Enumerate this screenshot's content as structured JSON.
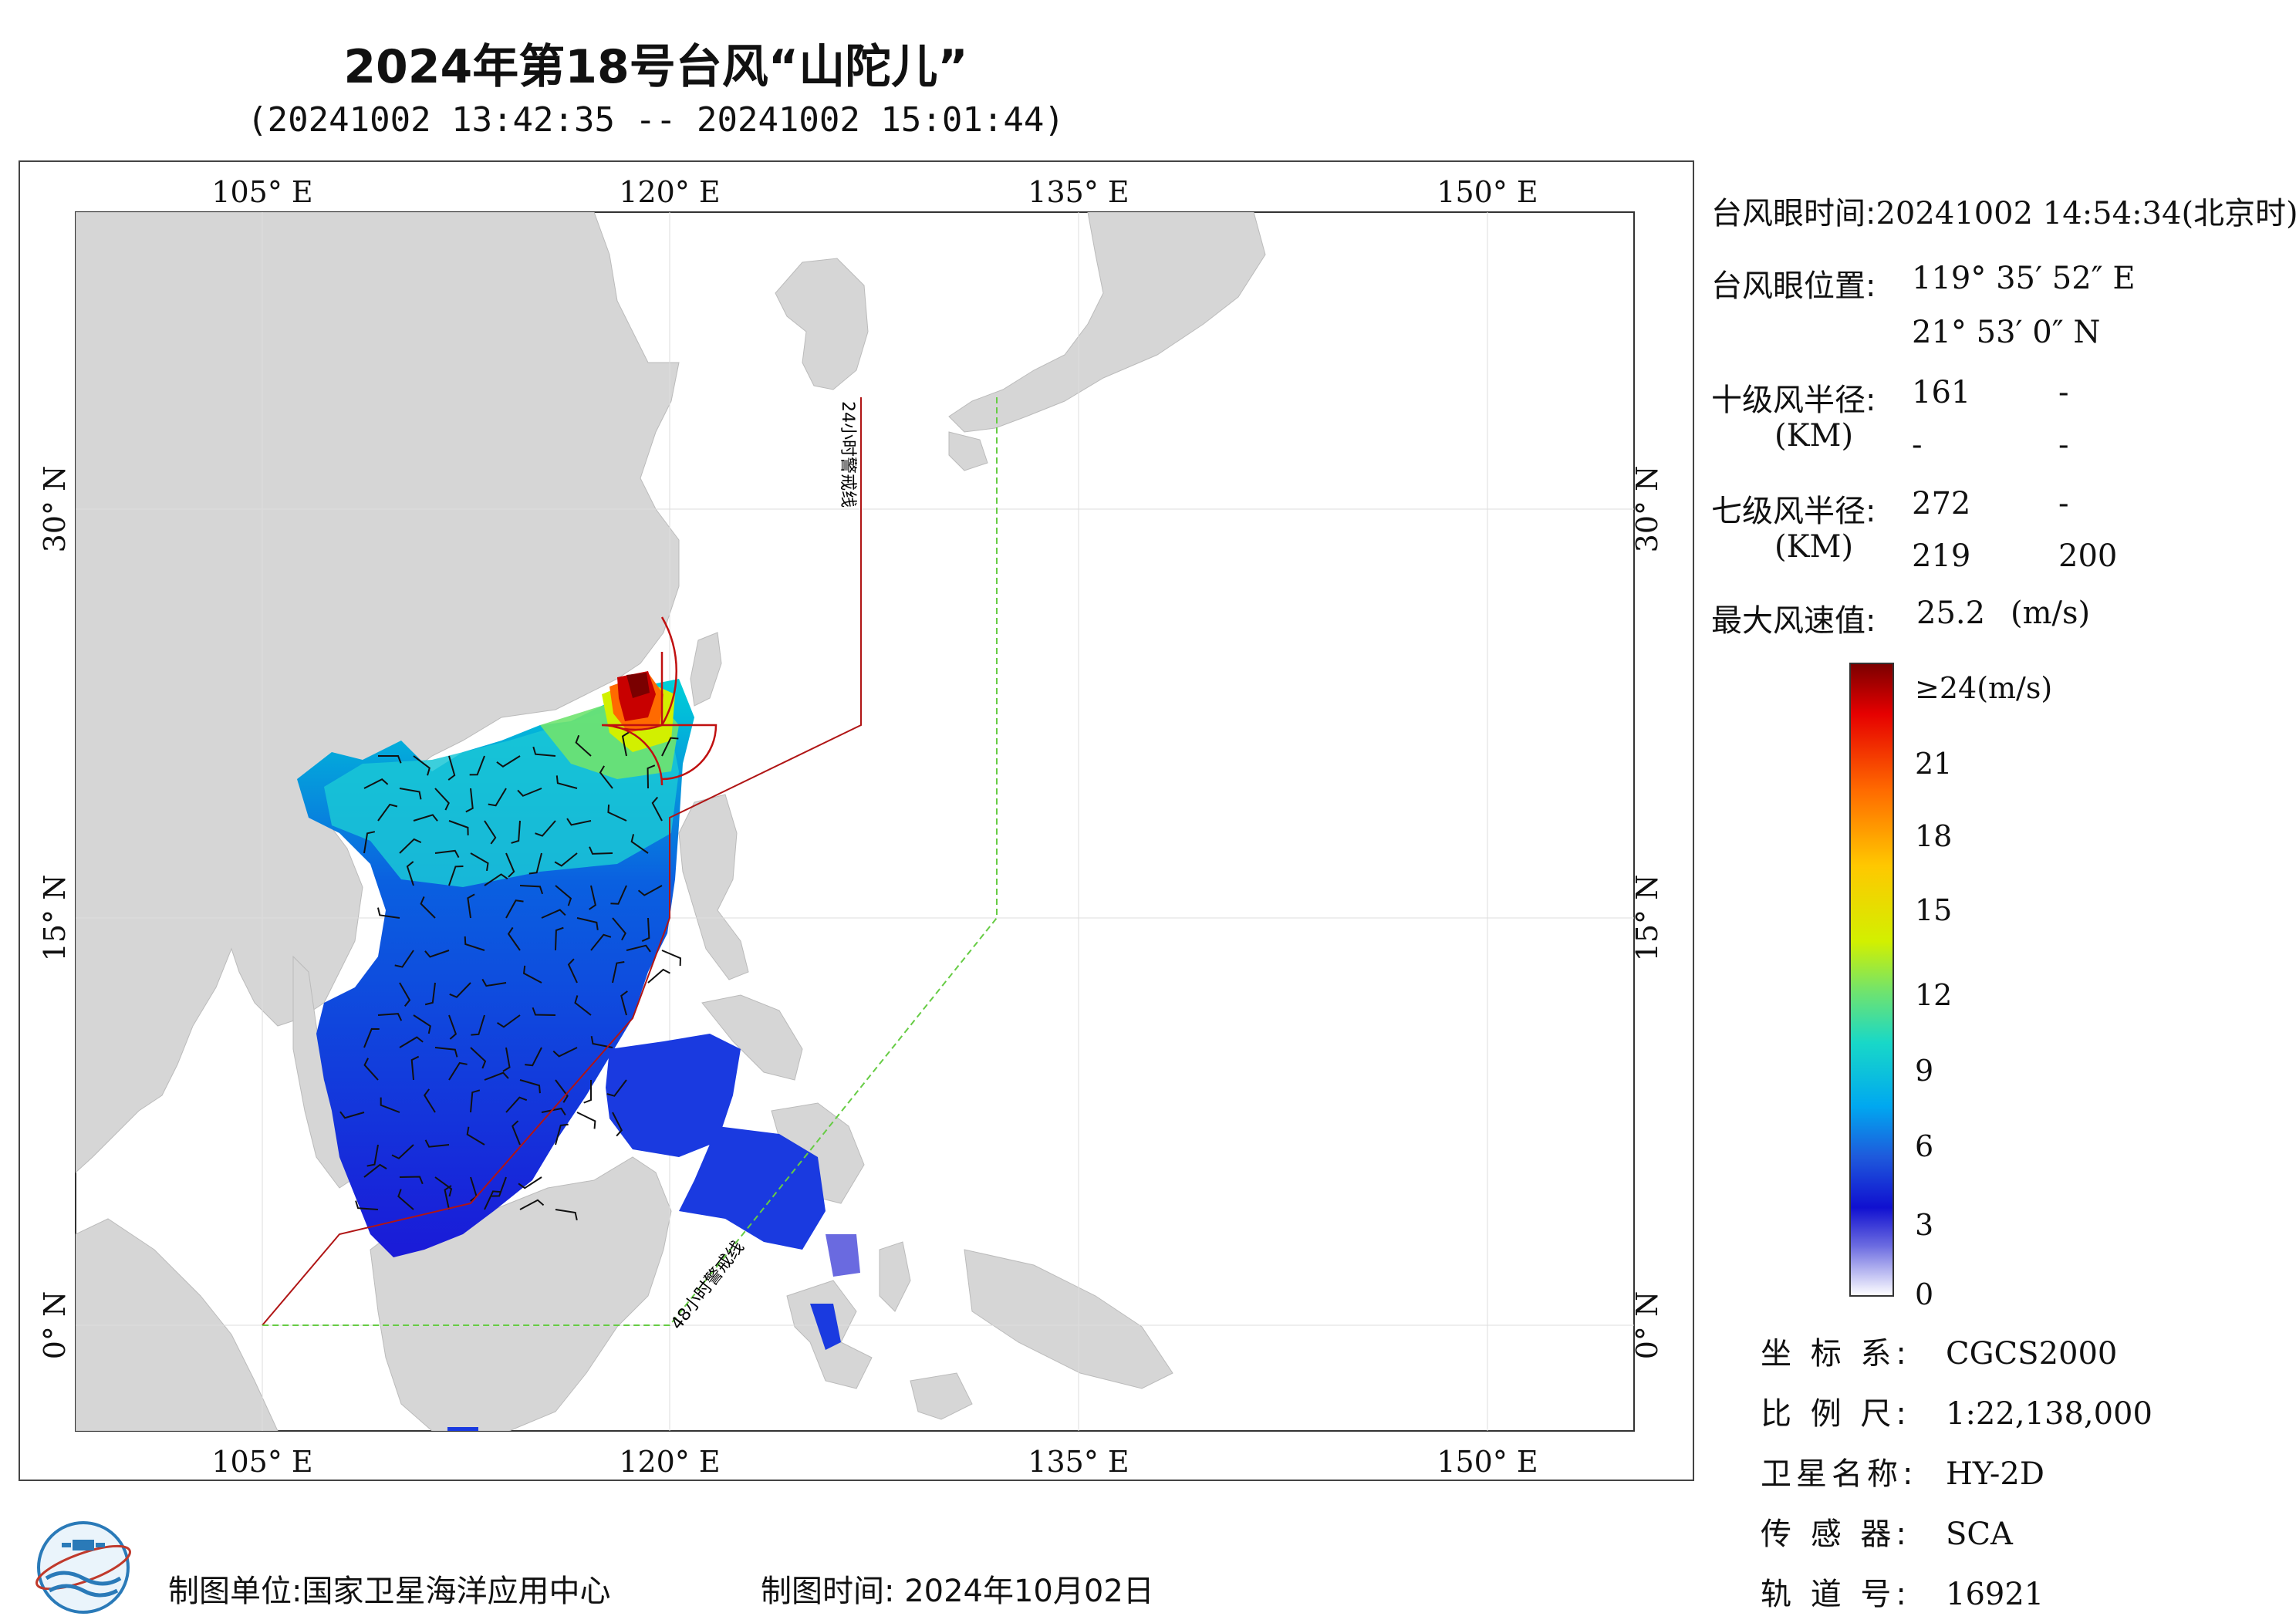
{
  "header": {
    "title": "2024年第18号台风“山陀儿”",
    "subtitle": "(20241002 13:42:35 -- 20241002 15:01:44)"
  },
  "map": {
    "top_lon_labels": [
      "105° E",
      "120° E",
      "135° E",
      "150° E"
    ],
    "bottom_lon_labels": [
      "105° E",
      "120° E",
      "135° E",
      "150° E"
    ],
    "left_lat_labels": [
      "30° N",
      "15° N",
      "0° N"
    ],
    "right_lat_labels": [
      "30° N",
      "15° N",
      "0° N"
    ],
    "warning_24h_label": "24小时警戒线",
    "warning_48h_label": "48小时警戒线",
    "colors": {
      "land": "#d6d6d6",
      "sea": "#ffffff",
      "line_24h": "#b01515",
      "line_48h": "#66cc44",
      "barb": "#111111"
    }
  },
  "info": {
    "eye_time_label": "台风眼时间:",
    "eye_time_value": "20241002 14:54:34(北京时)",
    "eye_pos_label": "台风眼位置:",
    "eye_lon": "119° 35′ 52″ E",
    "eye_lat": "21° 53′ 0″ N",
    "r10_label": "十级风半径:",
    "r10_unit": "(KM)",
    "r10_values": [
      "161",
      "-",
      "-",
      "-"
    ],
    "r7_label": "七级风半径:",
    "r7_unit": "(KM)",
    "r7_values": [
      "272",
      "-",
      "219",
      "200"
    ],
    "max_wind_label": "最大风速值:",
    "max_wind_value": "25.2",
    "max_wind_unit": "(m/s)"
  },
  "colorbar": {
    "labels": [
      "≥24(m/s)",
      "21",
      "18",
      "15",
      "12",
      "9",
      "6",
      "3",
      "0"
    ],
    "colors": [
      "#7a0000",
      "#e60000",
      "#ff6a00",
      "#ffc800",
      "#d2f000",
      "#6fe36f",
      "#18d8c8",
      "#00a8f0",
      "#1e5adc",
      "#1010d0",
      "#6a6ae0",
      "#c8c8f4",
      "#ffffff"
    ]
  },
  "meta": {
    "crs_label": "坐 标 系:",
    "crs_value": "CGCS2000",
    "scale_label": "比 例 尺:",
    "scale_value": "1:22,138,000",
    "sat_label": "卫星名称:",
    "sat_value": "HY-2D",
    "sensor_label": "传 感 器:",
    "sensor_value": "SCA",
    "orbit_label": "轨 道 号:",
    "orbit_value": "16921"
  },
  "footer": {
    "maker": "制图单位:国家卫星海洋应用中心",
    "time": "制图时间: 2024年10月02日"
  }
}
